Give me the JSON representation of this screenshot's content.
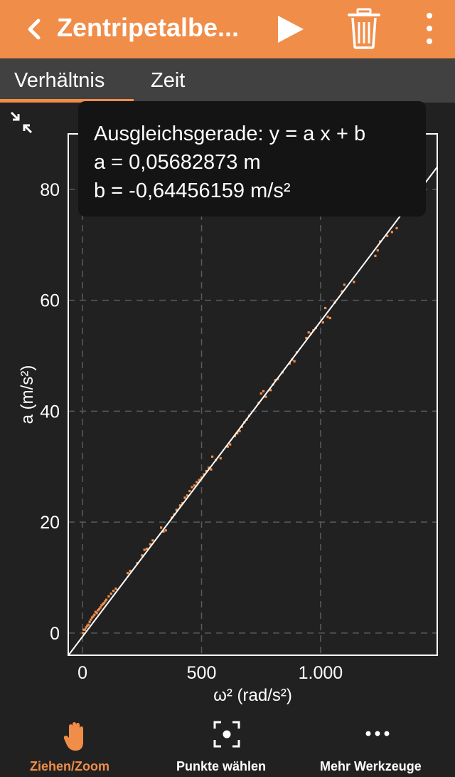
{
  "header": {
    "title": "Zentripetalbe...",
    "accent": "#f08d49"
  },
  "tabs": [
    {
      "label": "Verhältnis",
      "active": true
    },
    {
      "label": "Zeit",
      "active": false
    }
  ],
  "fit": {
    "line1": "Ausgleichsgerade: y = a x + b",
    "line2": "a = 0,05682873 m",
    "line3": "b = -0,64456159 m/s²"
  },
  "toolbar": [
    {
      "label": "Ziehen/Zoom",
      "icon": "hand-icon",
      "active": true
    },
    {
      "label": "Punkte wählen",
      "icon": "select-points-icon",
      "active": false
    },
    {
      "label": "Mehr Werkzeuge",
      "icon": "more-horizontal-icon",
      "active": false
    }
  ],
  "chart_data": {
    "type": "scatter",
    "xlabel": "ω² (rad/s²)",
    "ylabel": "a (m/s²)",
    "xlim": [
      -60,
      1490
    ],
    "ylim": [
      -4,
      90
    ],
    "xticks": [
      0,
      500,
      1000
    ],
    "xtick_labels": [
      "0",
      "500",
      "1.000"
    ],
    "yticks": [
      0,
      20,
      40,
      60,
      80
    ],
    "ytick_labels": [
      "0",
      "20",
      "40",
      "60",
      "80"
    ],
    "grid": true,
    "fit_line": {
      "a": 0.05682873,
      "b": -0.64456159
    },
    "point_color": "#f08d49",
    "line_color": "#ffffff",
    "points": [
      [
        2,
        0.0
      ],
      [
        5,
        0.6
      ],
      [
        10,
        0.6
      ],
      [
        15,
        1.0
      ],
      [
        20,
        1.3
      ],
      [
        25,
        1.5
      ],
      [
        30,
        2.0
      ],
      [
        35,
        2.4
      ],
      [
        40,
        2.8
      ],
      [
        45,
        3.0
      ],
      [
        50,
        3.3
      ],
      [
        55,
        3.8
      ],
      [
        60,
        3.6
      ],
      [
        65,
        4.1
      ],
      [
        70,
        4.3
      ],
      [
        75,
        4.6
      ],
      [
        80,
        5.0
      ],
      [
        85,
        5.2
      ],
      [
        90,
        5.4
      ],
      [
        95,
        5.7
      ],
      [
        100,
        6.0
      ],
      [
        110,
        6.6
      ],
      [
        120,
        7.1
      ],
      [
        130,
        7.6
      ],
      [
        140,
        8.0
      ],
      [
        190,
        10.8
      ],
      [
        200,
        11.2
      ],
      [
        230,
        12.6
      ],
      [
        250,
        14.0
      ],
      [
        260,
        15.0
      ],
      [
        270,
        15.2
      ],
      [
        285,
        16.0
      ],
      [
        295,
        16.7
      ],
      [
        330,
        19.0
      ],
      [
        340,
        18.3
      ],
      [
        350,
        18.5
      ],
      [
        375,
        20.8
      ],
      [
        385,
        21.4
      ],
      [
        395,
        22.2
      ],
      [
        410,
        23.0
      ],
      [
        420,
        23.4
      ],
      [
        430,
        24.4
      ],
      [
        440,
        24.8
      ],
      [
        450,
        25.6
      ],
      [
        460,
        26.3
      ],
      [
        470,
        26.6
      ],
      [
        480,
        27.2
      ],
      [
        490,
        27.6
      ],
      [
        500,
        28.0
      ],
      [
        510,
        28.6
      ],
      [
        520,
        29.2
      ],
      [
        530,
        29.8
      ],
      [
        540,
        29.5
      ],
      [
        545,
        31.8
      ],
      [
        560,
        31.2
      ],
      [
        580,
        31.5
      ],
      [
        610,
        33.6
      ],
      [
        620,
        34.0
      ],
      [
        640,
        35.5
      ],
      [
        650,
        36.0
      ],
      [
        660,
        36.4
      ],
      [
        670,
        37.2
      ],
      [
        680,
        38.0
      ],
      [
        690,
        38.5
      ],
      [
        700,
        39.2
      ],
      [
        740,
        41.5
      ],
      [
        750,
        43.2
      ],
      [
        760,
        43.6
      ],
      [
        770,
        42.6
      ],
      [
        790,
        43.8
      ],
      [
        800,
        44.8
      ],
      [
        810,
        45.6
      ],
      [
        820,
        45.8
      ],
      [
        840,
        47.0
      ],
      [
        870,
        48.6
      ],
      [
        880,
        49.3
      ],
      [
        890,
        49.0
      ],
      [
        900,
        50.6
      ],
      [
        940,
        53.2
      ],
      [
        950,
        54.2
      ],
      [
        960,
        54.0
      ],
      [
        970,
        54.6
      ],
      [
        980,
        55.0
      ],
      [
        1010,
        56.0
      ],
      [
        1020,
        58.6
      ],
      [
        1030,
        57.0
      ],
      [
        1040,
        56.8
      ],
      [
        1060,
        59.6
      ],
      [
        1090,
        61.6
      ],
      [
        1100,
        62.8
      ],
      [
        1140,
        63.3
      ],
      [
        1230,
        68.0
      ],
      [
        1240,
        69.0
      ],
      [
        1250,
        70.6
      ],
      [
        1280,
        71.6
      ],
      [
        1300,
        72.3
      ],
      [
        1320,
        73.0
      ]
    ]
  }
}
